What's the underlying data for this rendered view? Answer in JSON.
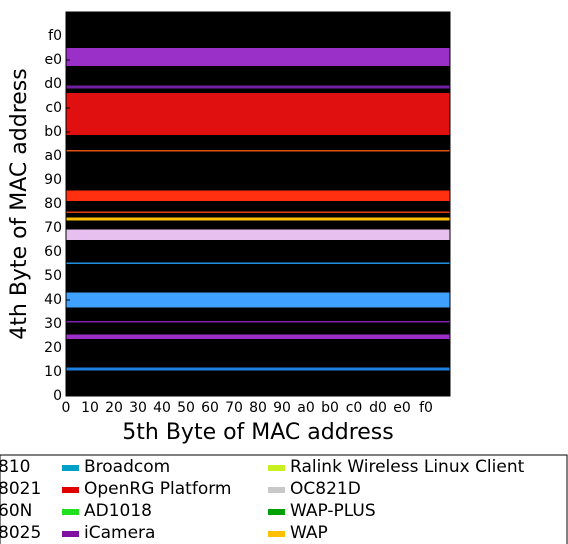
{
  "chart_data": {
    "type": "heatmap",
    "xlabel": "5th Byte of MAC address",
    "ylabel": "4th Byte of MAC address",
    "xlim": [
      0,
      256
    ],
    "ylim": [
      0,
      256
    ],
    "xticks": [
      0,
      {
        "value": 16,
        "label": "10"
      },
      {
        "value": 32,
        "label": "20"
      },
      {
        "value": 48,
        "label": "30"
      },
      {
        "value": 64,
        "label": "40"
      },
      {
        "value": 80,
        "label": "50"
      },
      {
        "value": 96,
        "label": "60"
      },
      {
        "value": 112,
        "label": "70"
      },
      {
        "value": 128,
        "label": "80"
      },
      {
        "value": 144,
        "label": "90"
      },
      {
        "value": 160,
        "label": "a0"
      },
      {
        "value": 176,
        "label": "b0"
      },
      {
        "value": 192,
        "label": "c0"
      },
      {
        "value": 208,
        "label": "d0"
      },
      {
        "value": 224,
        "label": "e0"
      },
      {
        "value": 240,
        "label": "f0"
      }
    ],
    "yticks": [
      0,
      {
        "value": 16,
        "label": "10"
      },
      {
        "value": 32,
        "label": "20"
      },
      {
        "value": 48,
        "label": "30"
      },
      {
        "value": 64,
        "label": "40"
      },
      {
        "value": 80,
        "label": "50"
      },
      {
        "value": 96,
        "label": "60"
      },
      {
        "value": 112,
        "label": "70"
      },
      {
        "value": 128,
        "label": "80"
      },
      {
        "value": 144,
        "label": "90"
      },
      {
        "value": 160,
        "label": "a0"
      },
      {
        "value": 176,
        "label": "b0"
      },
      {
        "value": 192,
        "label": "c0"
      },
      {
        "value": 208,
        "label": "d0"
      },
      {
        "value": 224,
        "label": "e0"
      },
      {
        "value": 240,
        "label": "f0"
      }
    ],
    "background": "#000000",
    "bands": [
      {
        "x": [
          0,
          256
        ],
        "y": [
          220,
          232
        ],
        "color": "#9b30c8"
      },
      {
        "x": [
          0,
          256
        ],
        "y": [
          174,
          202
        ],
        "color": "#e01010"
      },
      {
        "x": [
          0,
          256
        ],
        "y": [
          163,
          164
        ],
        "color": "#e05010"
      },
      {
        "x": [
          0,
          256
        ],
        "y": [
          130,
          137
        ],
        "color": "#ff3010"
      },
      {
        "x": [
          0,
          256
        ],
        "y": [
          122,
          123
        ],
        "color": "#e04010"
      },
      {
        "x": [
          0,
          256
        ],
        "y": [
          117,
          119
        ],
        "color": "#ffc000"
      },
      {
        "x": [
          0,
          256
        ],
        "y": [
          104,
          111
        ],
        "color": "#e8c0f0"
      },
      {
        "x": [
          0,
          256
        ],
        "y": [
          88,
          89
        ],
        "color": "#1e90e0"
      },
      {
        "x": [
          0,
          256
        ],
        "y": [
          59,
          69
        ],
        "color": "#40a0ff"
      },
      {
        "x": [
          0,
          256
        ],
        "y": [
          49,
          50
        ],
        "color": "#8020b0"
      },
      {
        "x": [
          0,
          256
        ],
        "y": [
          38,
          41
        ],
        "color": "#9b30c8"
      },
      {
        "x": [
          0,
          256
        ],
        "y": [
          17,
          19
        ],
        "color": "#2080e0"
      },
      {
        "x": [
          0,
          256
        ],
        "y": [
          205,
          207
        ],
        "color": "#7020a0"
      }
    ],
    "cropped_legend_labels": [
      "810",
      "8021",
      "60N",
      "8025"
    ],
    "series": [
      {
        "name": "Broadcom",
        "color": "#00a0c8"
      },
      {
        "name": "OpenRG Platform",
        "color": "#e00000"
      },
      {
        "name": "AD1018",
        "color": "#20e020"
      },
      {
        "name": "iCamera",
        "color": "#8010a0"
      },
      {
        "name": "Ralink Wireless Linux Client",
        "color": "#c8f020"
      },
      {
        "name": "OC821D",
        "color": "#c8c8c8"
      },
      {
        "name": "WAP-PLUS",
        "color": "#00a000"
      },
      {
        "name": "WAP",
        "color": "#ffc000"
      }
    ]
  }
}
